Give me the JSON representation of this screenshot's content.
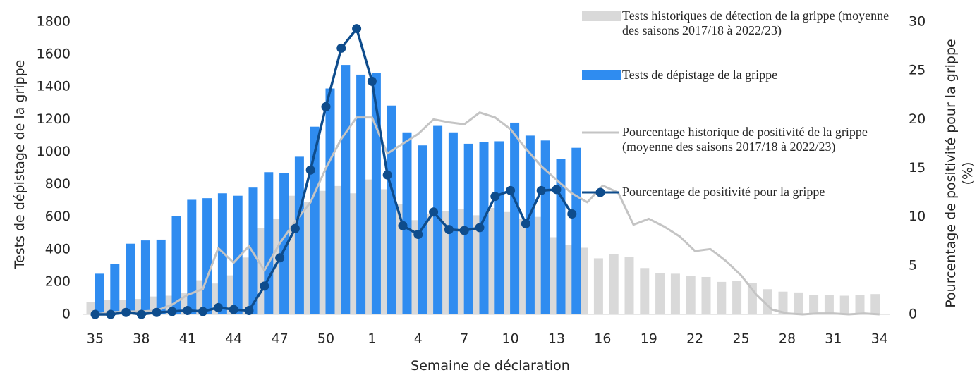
{
  "chart_data": {
    "type": "bar",
    "xlabel": "Semaine de déclaration",
    "ylabel": "Tests de dépistage de la grippe",
    "y2label": "Pourcentage de positivité pour la grippe (%)",
    "categories": [
      "35",
      null,
      null,
      "38",
      null,
      null,
      "41",
      null,
      null,
      "44",
      null,
      null,
      "47",
      null,
      null,
      "50",
      null,
      null,
      "1",
      null,
      null,
      "4",
      null,
      null,
      "7",
      null,
      null,
      "10",
      null,
      null,
      "13",
      null,
      null,
      "16",
      null,
      null,
      "19",
      null,
      null,
      "22",
      null,
      null,
      "25",
      null,
      null,
      "28",
      null,
      null,
      "31",
      null,
      null,
      "34"
    ],
    "ylim": [
      0,
      1800
    ],
    "yticks": [
      0,
      200,
      400,
      600,
      800,
      1000,
      1200,
      1400,
      1600,
      1800
    ],
    "y2lim": [
      0,
      30
    ],
    "y2ticks": [
      0,
      5,
      10,
      15,
      20,
      25,
      30
    ],
    "legend": "top-right",
    "series": [
      {
        "name": "Tests historiques de détection de la grippe (moyenne des saisons 2017/18 à 2022/23)",
        "type": "bar",
        "color": "#d9d9d9",
        "values": [
          75,
          90,
          90,
          95,
          110,
          115,
          130,
          210,
          190,
          240,
          350,
          530,
          590,
          730,
          690,
          760,
          790,
          745,
          830,
          770,
          680,
          580,
          620,
          635,
          650,
          610,
          655,
          630,
          590,
          600,
          475,
          425,
          410,
          345,
          370,
          355,
          285,
          255,
          250,
          235,
          230,
          200,
          205,
          195,
          155,
          140,
          135,
          120,
          120,
          115,
          120,
          125
        ]
      },
      {
        "name": "Tests de dépistage de la grippe",
        "type": "bar",
        "color": "#2f8cf0",
        "values": [
          250,
          310,
          435,
          455,
          460,
          605,
          705,
          715,
          745,
          730,
          780,
          875,
          870,
          970,
          1155,
          1390,
          1535,
          1475,
          1485,
          1285,
          1120,
          1040,
          1160,
          1120,
          1050,
          1060,
          1065,
          1180,
          1100,
          1070,
          955,
          1025,
          null,
          null,
          null,
          null,
          null,
          null,
          null,
          null,
          null,
          null,
          null,
          null,
          null,
          null,
          null,
          null,
          null,
          null,
          null,
          null
        ]
      },
      {
        "name": "Pourcentage historique de positivité de la grippe (moyenne des saisons 2017/18 à 2022/23)",
        "type": "line",
        "axis": "y2",
        "color": "#c4c4c4",
        "values": [
          0,
          0.2,
          0.3,
          0.3,
          0.4,
          1,
          2,
          2.6,
          6.8,
          5.3,
          7,
          4.5,
          7.3,
          9.5,
          11.5,
          15,
          18,
          20.2,
          20.2,
          16.5,
          17.5,
          18.5,
          20,
          19.7,
          19.5,
          20.7,
          20.2,
          19,
          17,
          15.2,
          13.8,
          12.4,
          11.5,
          13.2,
          12.5,
          9.2,
          9.8,
          9,
          8,
          6.5,
          6.7,
          5.5,
          4,
          2,
          0.5,
          0.1,
          0,
          0.1,
          0.1,
          0,
          0.1,
          0
        ]
      },
      {
        "name": "Pourcentage de positivité pour la grippe",
        "type": "line",
        "axis": "y2",
        "color": "#0e4c8c",
        "marker": "circle",
        "values": [
          0,
          0,
          0.2,
          0,
          0.2,
          0.3,
          0.4,
          0.3,
          0.7,
          0.5,
          0.4,
          2.9,
          5.8,
          8.8,
          14.8,
          21.3,
          27.3,
          29.3,
          23.9,
          14.3,
          9.1,
          8.2,
          10.5,
          8.7,
          8.6,
          8.9,
          12.1,
          12.7,
          9.3,
          12.7,
          12.8,
          10.3,
          null,
          null,
          null,
          null,
          null,
          null,
          null,
          null,
          null,
          null,
          null,
          null,
          null,
          null,
          null,
          null,
          null,
          null,
          null,
          null
        ]
      }
    ]
  }
}
